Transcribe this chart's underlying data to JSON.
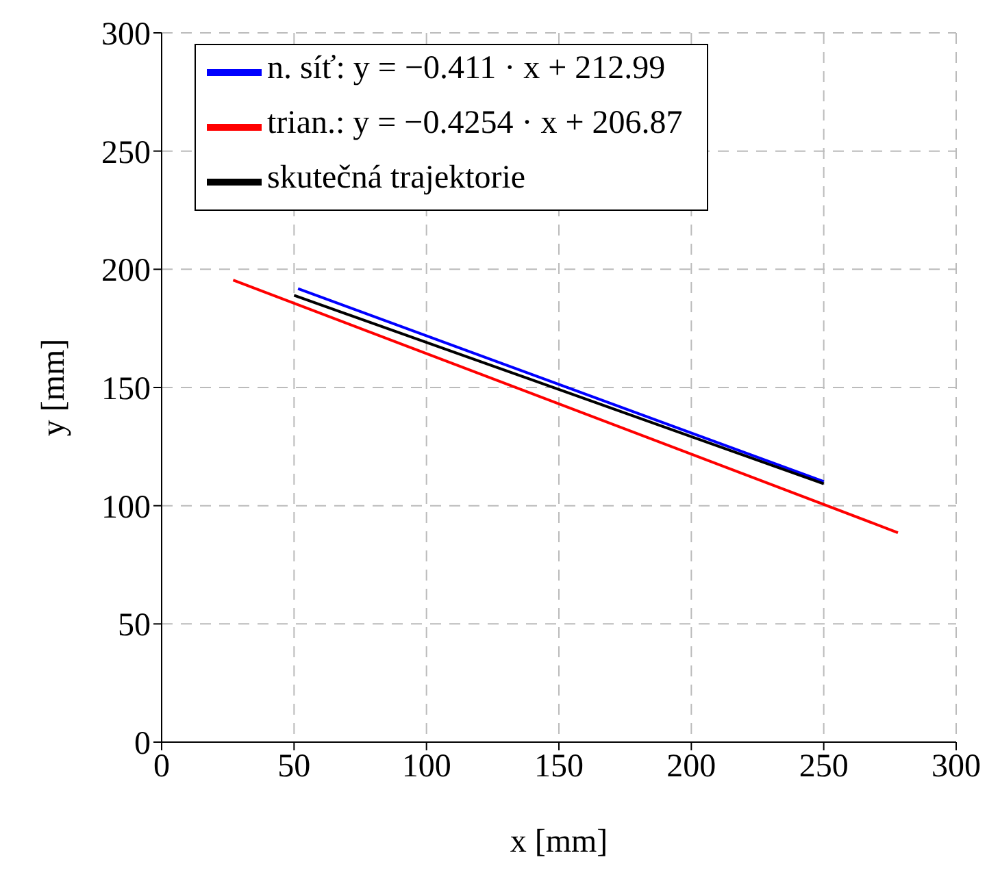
{
  "chart_data": {
    "type": "line",
    "xlabel": "x [mm]",
    "ylabel": "y [mm]",
    "xlim": [
      0,
      300
    ],
    "ylim": [
      0,
      300
    ],
    "xticks": [
      0,
      50,
      100,
      150,
      200,
      250,
      300
    ],
    "yticks": [
      0,
      50,
      100,
      150,
      200,
      250,
      300
    ],
    "grid": true,
    "legend": "top",
    "marker": "none",
    "line_style": "solid",
    "series": [
      {
        "name": "n. síť: y = −0.411 · x + 212.99",
        "color": "#0000ff",
        "x": [
          51.5,
          250
        ],
        "values": [
          191.8,
          110.2
        ]
      },
      {
        "name": "trian.: y = −0.4254 · x + 206.87",
        "color": "#ff0000",
        "x": [
          27,
          278
        ],
        "values": [
          195.4,
          88.6
        ]
      },
      {
        "name": "skutečná trajektorie",
        "color": "#000000",
        "x": [
          50,
          250
        ],
        "values": [
          189,
          109.3
        ]
      }
    ]
  }
}
